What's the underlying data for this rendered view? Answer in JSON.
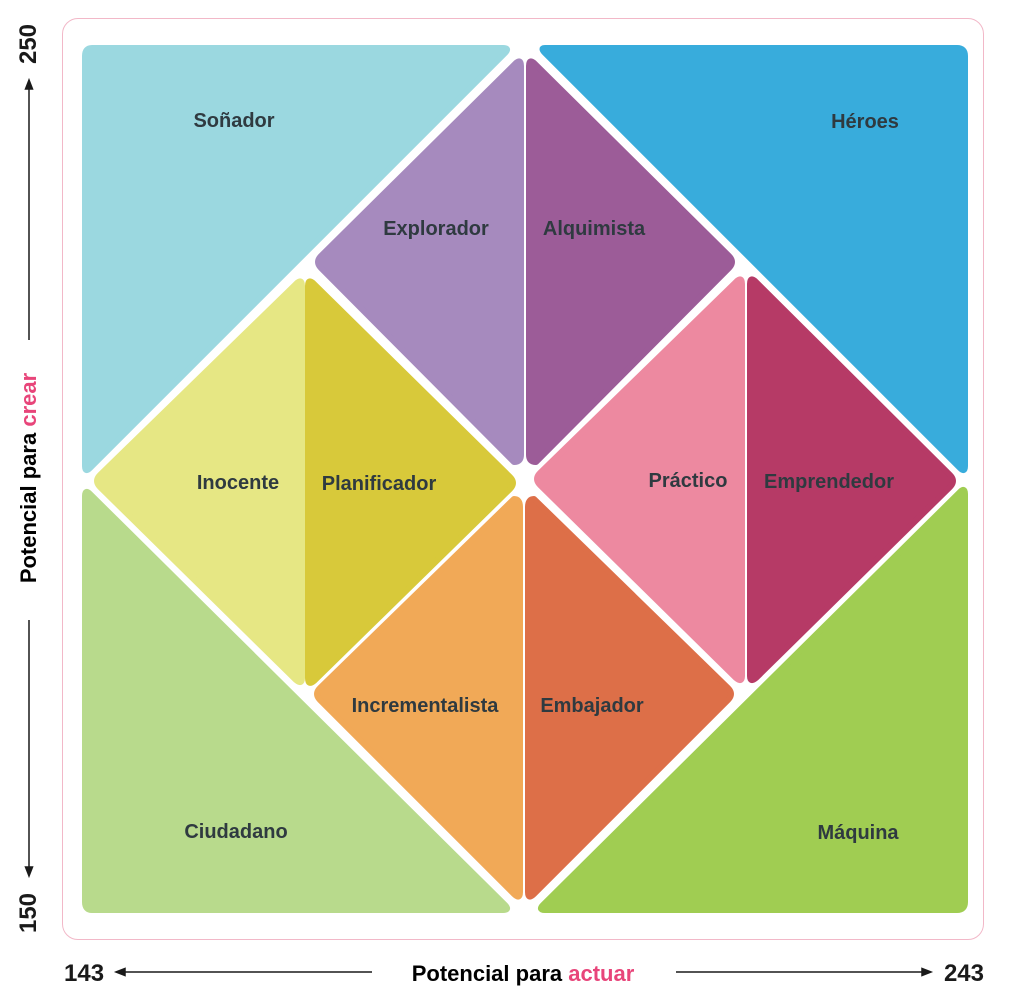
{
  "axes": {
    "y_title_prefix": "Potencial para ",
    "y_title_accent": "crear",
    "y_max": "250",
    "y_min": "150",
    "x_title_prefix": "Potencial para ",
    "x_title_accent": "actuar",
    "x_min": "143",
    "x_max": "243",
    "accent_color": "#e8457a"
  },
  "regions": {
    "sonador": {
      "label": "Soñador",
      "color": "#9bd8e0"
    },
    "heroes": {
      "label": "Héroes",
      "color": "#38acdc"
    },
    "ciudadano": {
      "label": "Ciudadano",
      "color": "#b8da8c"
    },
    "maquina": {
      "label": "Máquina",
      "color": "#a0cd52"
    },
    "explorador": {
      "label": "Explorador",
      "color": "#a68abe"
    },
    "alquimista": {
      "label": "Alquimista",
      "color": "#9c5c98"
    },
    "inocente": {
      "label": "Inocente",
      "color": "#e6e784"
    },
    "planificador": {
      "label": "Planificador",
      "color": "#d8c93a"
    },
    "practico": {
      "label": "Práctico",
      "color": "#ed89a0"
    },
    "emprendedor": {
      "label": "Emprendedor",
      "color": "#b63a66"
    },
    "incrementalista": {
      "label": "Incrementalista",
      "color": "#f1a957"
    },
    "embajador": {
      "label": "Embajador",
      "color": "#dd6f48"
    }
  }
}
